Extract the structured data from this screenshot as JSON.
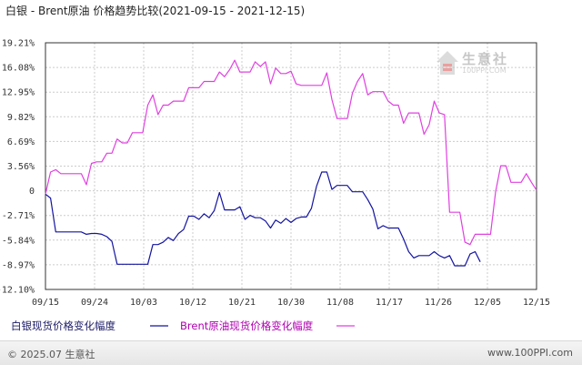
{
  "title": "白银 - Brent原油 价格趋势比较(2021-09-15 - 2021-12-15)",
  "watermark": {
    "name": "生意社",
    "url": "100PPI.COM"
  },
  "footer": {
    "copyright": "© 2025.07 生意社",
    "site": "www.100PPI.com"
  },
  "colors": {
    "silver": "#1414a0",
    "brent": "#e040e0",
    "grid": "#cccccc",
    "axis": "#333333"
  },
  "chart_data": {
    "type": "line",
    "title": "白银 - Brent原油 价格趋势比较(2021-09-15 - 2021-12-15)",
    "xlabel": "",
    "ylabel": "",
    "x_ticks": [
      "09/15",
      "09/24",
      "10/03",
      "10/12",
      "10/21",
      "10/30",
      "11/08",
      "11/17",
      "11/26",
      "12/05",
      "12/15"
    ],
    "y_ticks": [
      "19.21%",
      "16.08%",
      "12.95%",
      "9.82%",
      "6.69%",
      "3.56%",
      "0",
      "-2.71%",
      "-5.84%",
      "-8.97%",
      "-12.10%"
    ],
    "ylim": [
      -12.1,
      19.21
    ],
    "grid": true,
    "legend_position": "bottom",
    "series": [
      {
        "name": "白银现货价格变化幅度",
        "color": "#1414a0",
        "points": [
          [
            0,
            0
          ],
          [
            1,
            -0.5
          ],
          [
            2,
            -4.8
          ],
          [
            3,
            -4.8
          ],
          [
            4,
            -4.8
          ],
          [
            5,
            -4.8
          ],
          [
            6,
            -4.8
          ],
          [
            7,
            -4.8
          ],
          [
            8,
            -5.1
          ],
          [
            9,
            -5.0
          ],
          [
            10,
            -5.0
          ],
          [
            11,
            -5.1
          ],
          [
            12,
            -5.4
          ],
          [
            13,
            -6.0
          ],
          [
            14,
            -8.9
          ],
          [
            15,
            -8.9
          ],
          [
            16,
            -8.9
          ],
          [
            17,
            -8.9
          ],
          [
            18,
            -8.9
          ],
          [
            19,
            -8.9
          ],
          [
            20,
            -8.9
          ],
          [
            21,
            -6.4
          ],
          [
            22,
            -6.4
          ],
          [
            23,
            -6.1
          ],
          [
            24,
            -5.5
          ],
          [
            25,
            -5.9
          ],
          [
            26,
            -5.0
          ],
          [
            27,
            -4.5
          ],
          [
            28,
            -2.8
          ],
          [
            29,
            -2.8
          ],
          [
            30,
            -3.2
          ],
          [
            31,
            -2.5
          ],
          [
            32,
            -3.0
          ],
          [
            33,
            -2.1
          ],
          [
            34,
            0.2
          ],
          [
            35,
            -2.0
          ],
          [
            36,
            -2.0
          ],
          [
            37,
            -2.0
          ],
          [
            38,
            -1.6
          ],
          [
            39,
            -3.2
          ],
          [
            40,
            -2.7
          ],
          [
            41,
            -3.0
          ],
          [
            42,
            -3.0
          ],
          [
            43,
            -3.4
          ],
          [
            44,
            -4.3
          ],
          [
            45,
            -3.3
          ],
          [
            46,
            -3.7
          ],
          [
            47,
            -3.1
          ],
          [
            48,
            -3.6
          ],
          [
            49,
            -3.1
          ],
          [
            50,
            -2.9
          ],
          [
            51,
            -2.9
          ],
          [
            52,
            -1.8
          ],
          [
            53,
            1.0
          ],
          [
            54,
            2.8
          ],
          [
            55,
            2.8
          ],
          [
            56,
            0.6
          ],
          [
            57,
            1.1
          ],
          [
            58,
            1.1
          ],
          [
            59,
            1.1
          ],
          [
            60,
            0.3
          ],
          [
            61,
            0.3
          ],
          [
            62,
            0.3
          ],
          [
            63,
            -0.7
          ],
          [
            64,
            -1.9
          ],
          [
            65,
            -4.4
          ],
          [
            66,
            -4.0
          ],
          [
            67,
            -4.3
          ],
          [
            68,
            -4.3
          ],
          [
            69,
            -4.3
          ],
          [
            70,
            -5.7
          ],
          [
            71,
            -7.3
          ],
          [
            72,
            -8.1
          ],
          [
            73,
            -7.8
          ],
          [
            74,
            -7.8
          ],
          [
            75,
            -7.8
          ],
          [
            76,
            -7.3
          ],
          [
            77,
            -7.8
          ],
          [
            78,
            -8.1
          ],
          [
            79,
            -7.8
          ],
          [
            80,
            -9.1
          ],
          [
            81,
            -9.1
          ],
          [
            82,
            -9.1
          ],
          [
            83,
            -7.6
          ],
          [
            84,
            -7.3
          ],
          [
            85,
            -8.6
          ]
        ]
      },
      {
        "name": "Brent原油现货价格变化幅度",
        "color": "#e040e0",
        "points": [
          [
            0,
            0
          ],
          [
            1,
            2.8
          ],
          [
            2,
            3.1
          ],
          [
            3,
            2.6
          ],
          [
            4,
            2.6
          ],
          [
            5,
            2.6
          ],
          [
            6,
            2.6
          ],
          [
            7,
            2.6
          ],
          [
            8,
            1.2
          ],
          [
            9,
            3.9
          ],
          [
            10,
            4.1
          ],
          [
            11,
            4.1
          ],
          [
            12,
            5.2
          ],
          [
            13,
            5.2
          ],
          [
            14,
            7.0
          ],
          [
            15,
            6.5
          ],
          [
            16,
            6.5
          ],
          [
            17,
            7.8
          ],
          [
            18,
            7.8
          ],
          [
            19,
            7.8
          ],
          [
            20,
            11.3
          ],
          [
            21,
            12.6
          ],
          [
            22,
            10.1
          ],
          [
            23,
            11.3
          ],
          [
            24,
            11.3
          ],
          [
            25,
            11.8
          ],
          [
            26,
            11.8
          ],
          [
            27,
            11.8
          ],
          [
            28,
            13.5
          ],
          [
            29,
            13.5
          ],
          [
            30,
            13.5
          ],
          [
            31,
            14.3
          ],
          [
            32,
            14.3
          ],
          [
            33,
            14.3
          ],
          [
            34,
            15.5
          ],
          [
            35,
            14.9
          ],
          [
            36,
            15.8
          ],
          [
            37,
            17.0
          ],
          [
            38,
            15.5
          ],
          [
            39,
            15.5
          ],
          [
            40,
            15.5
          ],
          [
            41,
            16.8
          ],
          [
            42,
            16.2
          ],
          [
            43,
            16.8
          ],
          [
            44,
            14.0
          ],
          [
            45,
            16.0
          ],
          [
            46,
            15.3
          ],
          [
            47,
            15.3
          ],
          [
            48,
            15.6
          ],
          [
            49,
            14.0
          ],
          [
            50,
            13.8
          ],
          [
            51,
            13.8
          ],
          [
            52,
            13.8
          ],
          [
            53,
            13.8
          ],
          [
            54,
            13.8
          ],
          [
            55,
            15.4
          ],
          [
            56,
            12.0
          ],
          [
            57,
            9.6
          ],
          [
            58,
            9.6
          ],
          [
            59,
            9.6
          ],
          [
            60,
            12.8
          ],
          [
            61,
            14.3
          ],
          [
            62,
            15.3
          ],
          [
            63,
            12.6
          ],
          [
            64,
            13.0
          ],
          [
            65,
            13.0
          ],
          [
            66,
            13.0
          ],
          [
            67,
            11.8
          ],
          [
            68,
            11.3
          ],
          [
            69,
            11.3
          ],
          [
            70,
            9.0
          ],
          [
            71,
            10.3
          ],
          [
            72,
            10.3
          ],
          [
            73,
            10.3
          ],
          [
            74,
            7.6
          ],
          [
            75,
            8.8
          ],
          [
            76,
            11.8
          ],
          [
            77,
            10.3
          ],
          [
            78,
            10.1
          ],
          [
            79,
            -2.3
          ],
          [
            80,
            -2.3
          ],
          [
            81,
            -2.3
          ],
          [
            82,
            -6.1
          ],
          [
            83,
            -6.4
          ],
          [
            84,
            -5.1
          ],
          [
            85,
            -5.1
          ],
          [
            86,
            -5.1
          ],
          [
            87,
            -5.1
          ],
          [
            88,
            0.3
          ],
          [
            89,
            3.6
          ],
          [
            90,
            3.6
          ],
          [
            91,
            1.5
          ],
          [
            92,
            1.5
          ],
          [
            93,
            1.5
          ],
          [
            94,
            2.6
          ],
          [
            95,
            1.5
          ],
          [
            96,
            0.5
          ]
        ]
      }
    ]
  }
}
